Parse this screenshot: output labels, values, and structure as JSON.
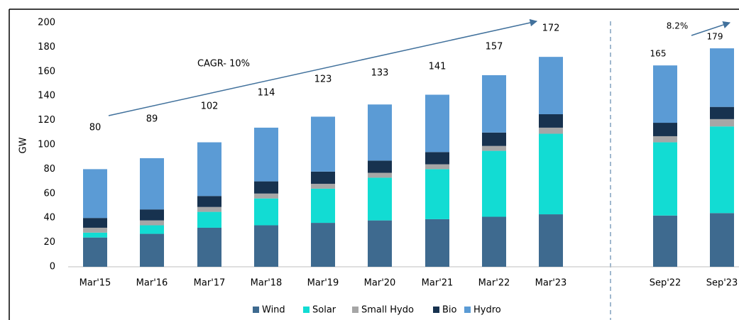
{
  "chart_data": {
    "type": "stacked_bar",
    "y_label": "GW",
    "categories": [
      "Mar'15",
      "Mar'16",
      "Mar'17",
      "Mar'18",
      "Mar'19",
      "Mar'20",
      "Mar'21",
      "Mar'22",
      "Mar'23",
      "Sep'22",
      "Sep'23"
    ],
    "series": [
      {
        "name": "Wind",
        "color": "#3e6a8f",
        "values": [
          24,
          27,
          32,
          34,
          36,
          38,
          39,
          41,
          43,
          42,
          44
        ]
      },
      {
        "name": "Solar",
        "color": "#12dcd3",
        "values": [
          4,
          7,
          13,
          22,
          28,
          35,
          41,
          54,
          66,
          60,
          71
        ]
      },
      {
        "name": "Small Hydo",
        "color": "#a6a6a6",
        "values": [
          4,
          4,
          4,
          4,
          4,
          4,
          4,
          4,
          5,
          5,
          6
        ]
      },
      {
        "name": "Bio",
        "color": "#17324f",
        "values": [
          8,
          9,
          9,
          10,
          10,
          10,
          10,
          11,
          11,
          11,
          10
        ]
      },
      {
        "name": "Hydro",
        "color": "#5b9bd5",
        "values": [
          40,
          42,
          44,
          44,
          45,
          46,
          47,
          47,
          47,
          47,
          48
        ]
      }
    ],
    "totals": [
      80,
      89,
      102,
      114,
      123,
      133,
      141,
      157,
      172,
      165,
      179
    ],
    "annotations": [
      "CAGR- 10%",
      "8.2%"
    ],
    "ylim": [
      0,
      200
    ],
    "yticks": [
      0,
      20,
      40,
      60,
      80,
      100,
      120,
      140,
      160,
      180,
      200
    ],
    "legend": "bottom"
  }
}
